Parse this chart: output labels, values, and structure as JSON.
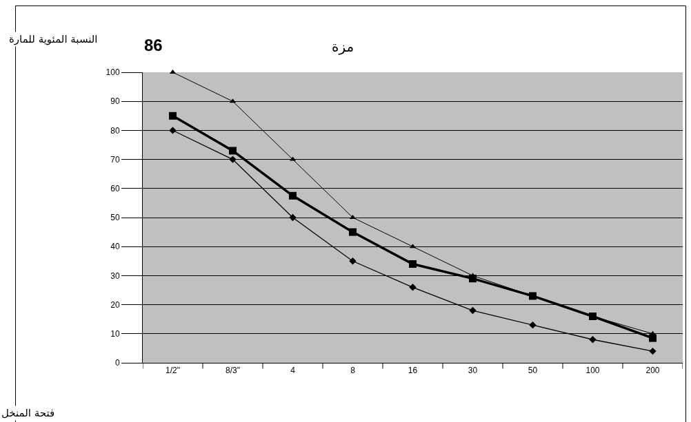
{
  "chart_data": {
    "type": "line",
    "title": "مزة",
    "ylabel": "النسبة المئوية للمارة",
    "annotations": [
      "86",
      "فتحة المنخل"
    ],
    "categories": [
      "1/2\"",
      "8/3\"",
      "4",
      "8",
      "16",
      "30",
      "50",
      "100",
      "200"
    ],
    "series": [
      {
        "color": "#000000",
        "marker": "triangle",
        "values": [
          100,
          90,
          70,
          50,
          40,
          30,
          23,
          16,
          10
        ]
      },
      {
        "color": "#000000",
        "marker": "square",
        "values": [
          85,
          73,
          57.5,
          45,
          34,
          29,
          23,
          16,
          8.5
        ]
      },
      {
        "color": "#000000",
        "marker": "diamond",
        "values": [
          80,
          70,
          50,
          35,
          26,
          18,
          13,
          8,
          4
        ]
      }
    ],
    "ylim": [
      0,
      100
    ],
    "yticks": [
      0,
      10,
      20,
      30,
      40,
      50,
      60,
      70,
      80,
      90,
      100
    ],
    "grid": "y"
  }
}
